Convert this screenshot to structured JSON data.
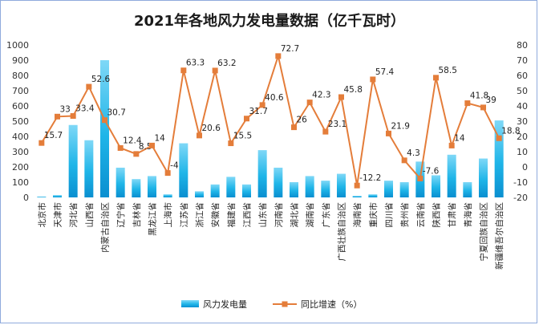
{
  "chart_data": {
    "type": "bar",
    "title": "2021年各地风力发电量数据（亿千瓦时）",
    "categories": [
      "北京市",
      "天津市",
      "河北省",
      "山西省",
      "内蒙古自治区",
      "辽宁省",
      "吉林省",
      "黑龙江省",
      "上海市",
      "江苏省",
      "浙江省",
      "安徽省",
      "福建省",
      "江西省",
      "山东省",
      "河南省",
      "湖北省",
      "湖南省",
      "广东省",
      "广西壮族自治区",
      "海南省",
      "重庆市",
      "四川省",
      "贵州省",
      "云南省",
      "陕西省",
      "甘肃省",
      "青海省",
      "宁夏回族自治区",
      "新疆维吾尔自治区"
    ],
    "series": [
      {
        "name": "风力发电量",
        "axis": "left",
        "color": "#1fb5e8",
        "values": [
          5,
          15,
          475,
          375,
          900,
          195,
          120,
          140,
          20,
          355,
          40,
          85,
          135,
          85,
          310,
          195,
          100,
          140,
          110,
          155,
          10,
          20,
          110,
          100,
          235,
          145,
          280,
          100,
          255,
          505
        ]
      },
      {
        "name": "同比增速（%）",
        "axis": "right",
        "type": "line",
        "color": "#e47d3a",
        "values": [
          15.7,
          33,
          33.4,
          52.6,
          30.7,
          12.4,
          8.5,
          14,
          -4,
          63.3,
          20.6,
          63.2,
          15.5,
          31.7,
          40.6,
          72.7,
          26,
          42.3,
          23.1,
          45.8,
          -12.2,
          57.4,
          21.9,
          4.3,
          -7.6,
          58.5,
          14,
          41.8,
          39,
          18.8
        ]
      }
    ],
    "left_axis": {
      "min": 0,
      "max": 1000,
      "step": 100,
      "ticks": [
        "0",
        "100",
        "200",
        "300",
        "400",
        "500",
        "600",
        "700",
        "800",
        "900",
        "1000"
      ]
    },
    "right_axis": {
      "min": -20,
      "max": 80,
      "step": 10,
      "ticks": [
        "-20",
        "-10",
        "0",
        "10",
        "20",
        "30",
        "40",
        "50",
        "60",
        "70",
        "80"
      ]
    },
    "legend": {
      "placement": "bottom",
      "items": [
        "风力发电量",
        "同比增速（%）"
      ]
    },
    "grid": false
  }
}
